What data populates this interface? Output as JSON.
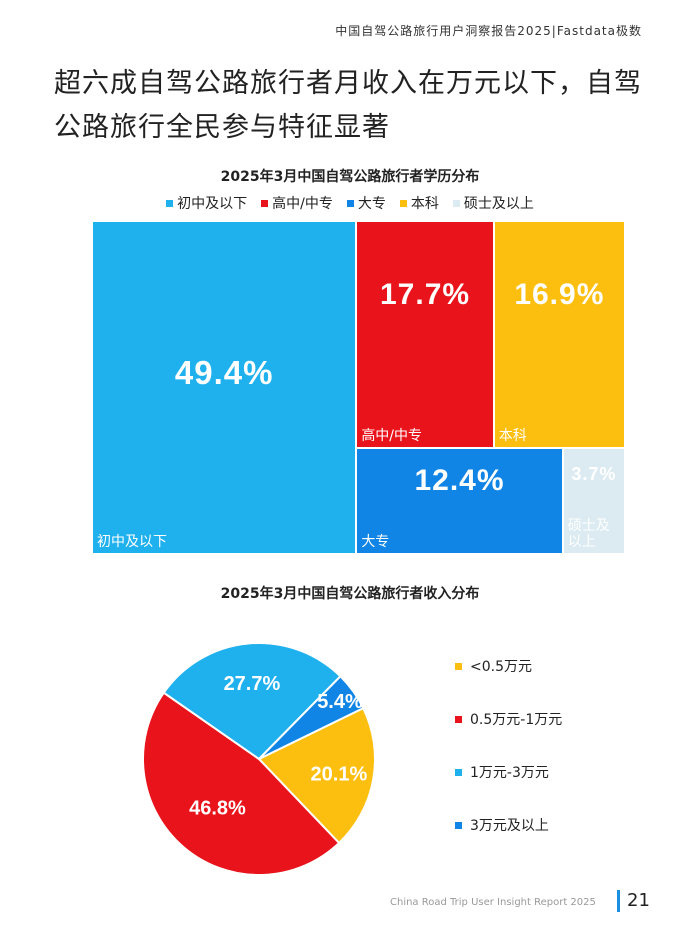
{
  "header": {
    "line": "中国自驾公路旅行用户洞察报告2025|Fastdata极数"
  },
  "page_title": "超六成自驾公路旅行者月收入在万元以下，自驾公路旅行全民参与特征显著",
  "colors": {
    "light_blue": "#1fb0ee",
    "red": "#e8131b",
    "yellow": "#fdbf0f",
    "blue": "#1185e5",
    "pale": "#dcebf1"
  },
  "chart_data": [
    {
      "type": "treemap",
      "title": "2025年3月中国自驾公路旅行者学历分布",
      "legend_placement": "top",
      "categories": [
        "初中及以下",
        "高中/中专",
        "大专",
        "本科",
        "硕士及以上"
      ],
      "values": [
        49.4,
        17.7,
        12.4,
        16.9,
        3.7
      ],
      "labels": [
        "49.4%",
        "17.7%",
        "12.4%",
        "16.9%",
        "3.7%"
      ],
      "cell_labels": [
        "初中及以下",
        "高中/中专",
        "大专",
        "本科",
        "硕士及以上"
      ]
    },
    {
      "type": "pie",
      "title": "2025年3月中国自驾公路旅行者收入分布",
      "legend_placement": "right",
      "categories": [
        "<0.5万元",
        "0.5万元-1万元",
        "1万元-3万元",
        "3万元及以上"
      ],
      "values": [
        20.1,
        46.8,
        27.7,
        5.4
      ],
      "labels": [
        "20.1%",
        "46.8%",
        "27.7%",
        "5.4%"
      ]
    }
  ],
  "footer": {
    "left": "China Road Trip User Insight Report 2025",
    "page": "21"
  }
}
